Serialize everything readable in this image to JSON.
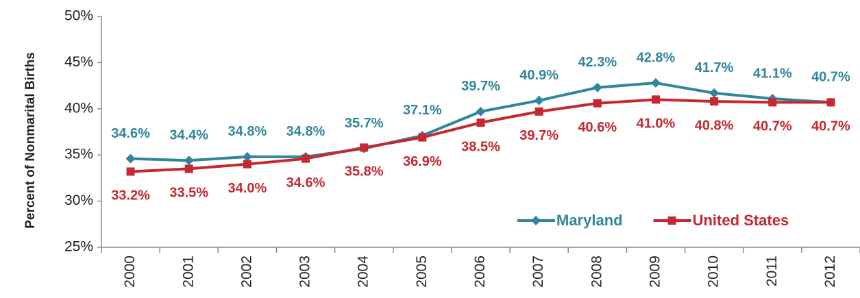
{
  "chart_data": {
    "type": "line",
    "y_axis_label": "Percent of Nonmarital Births",
    "categories": [
      "2000",
      "2001",
      "2002",
      "2003",
      "2004",
      "2005",
      "2006",
      "2007",
      "2008",
      "2009",
      "2010",
      "2011",
      "2012"
    ],
    "series": [
      {
        "name": "Maryland",
        "color": "#31859c",
        "marker": "diamond",
        "values": [
          34.6,
          34.4,
          34.8,
          34.8,
          35.7,
          37.1,
          39.7,
          40.9,
          42.3,
          42.8,
          41.7,
          41.1,
          40.7
        ],
        "value_labels": [
          "34.6%",
          "34.4%",
          "34.8%",
          "34.8%",
          "35.7%",
          "37.1%",
          "39.7%",
          "40.9%",
          "42.3%",
          "42.8%",
          "41.7%",
          "41.1%",
          "40.7%"
        ]
      },
      {
        "name": "United States",
        "color": "#c5282f",
        "marker": "square",
        "values": [
          33.2,
          33.5,
          34.0,
          34.6,
          35.8,
          36.9,
          38.5,
          39.7,
          40.6,
          41.0,
          40.8,
          40.7,
          40.7
        ],
        "value_labels": [
          "33.2%",
          "33.5%",
          "34.0%",
          "34.6%",
          "35.8%",
          "36.9%",
          "38.5%",
          "39.7%",
          "40.6%",
          "41.0%",
          "40.8%",
          "40.7%",
          "40.7%"
        ]
      }
    ],
    "ylim": [
      25,
      50
    ],
    "yticks": [
      {
        "value": 25,
        "label": "25%"
      },
      {
        "value": 30,
        "label": "30%"
      },
      {
        "value": 35,
        "label": "35%"
      },
      {
        "value": 40,
        "label": "40%"
      },
      {
        "value": 45,
        "label": "45%"
      },
      {
        "value": 50,
        "label": "50%"
      }
    ],
    "grid": false,
    "legend": "lower right"
  }
}
